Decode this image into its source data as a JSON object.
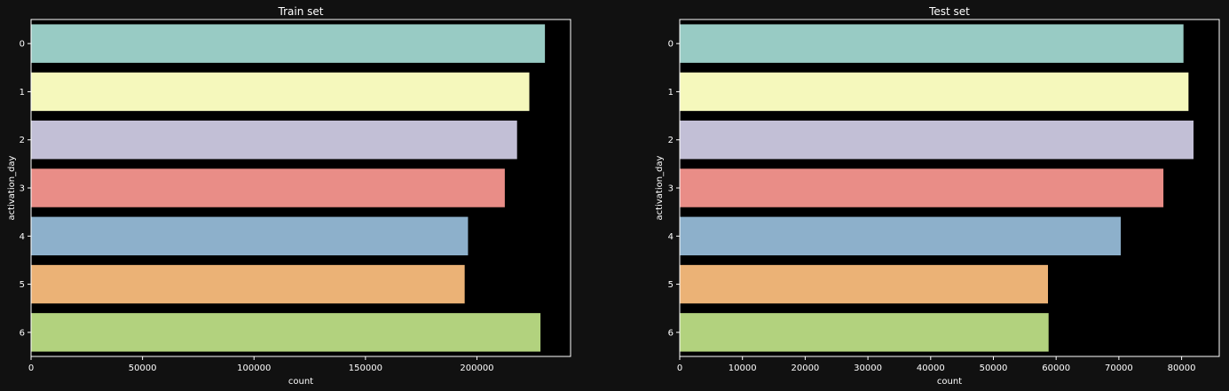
{
  "figure": {
    "background": "#111111",
    "axes_background": "#000000",
    "text_color": "#ffffff"
  },
  "chart_data": [
    {
      "type": "bar",
      "orientation": "horizontal",
      "title": "Train set",
      "xlabel": "count",
      "ylabel": "activation_day",
      "categories": [
        "0",
        "1",
        "2",
        "3",
        "4",
        "5",
        "6"
      ],
      "values": [
        230500,
        223500,
        218000,
        212500,
        196000,
        194500,
        228500
      ],
      "colors": [
        "#98cbc4",
        "#f5f8bc",
        "#c2bfd6",
        "#e98d87",
        "#8db0cb",
        "#ebb276",
        "#b2d27e"
      ],
      "xlim": [
        0,
        242000
      ],
      "xticks": [
        0,
        50000,
        100000,
        150000,
        200000
      ],
      "xtick_labels": [
        "0",
        "50000",
        "100000",
        "150000",
        "200000"
      ],
      "grid": false
    },
    {
      "type": "bar",
      "orientation": "horizontal",
      "title": "Test set",
      "xlabel": "count",
      "ylabel": "activation_day",
      "categories": [
        "0",
        "1",
        "2",
        "3",
        "4",
        "5",
        "6"
      ],
      "values": [
        80300,
        81100,
        81900,
        77100,
        70300,
        58700,
        58800
      ],
      "colors": [
        "#98cbc4",
        "#f5f8bc",
        "#c2bfd6",
        "#e98d87",
        "#8db0cb",
        "#ebb276",
        "#b2d27e"
      ],
      "xlim": [
        0,
        86000
      ],
      "xticks": [
        0,
        10000,
        20000,
        30000,
        40000,
        50000,
        60000,
        70000,
        80000
      ],
      "xtick_labels": [
        "0",
        "10000",
        "20000",
        "30000",
        "40000",
        "50000",
        "60000",
        "70000",
        "80000"
      ],
      "grid": false
    }
  ]
}
